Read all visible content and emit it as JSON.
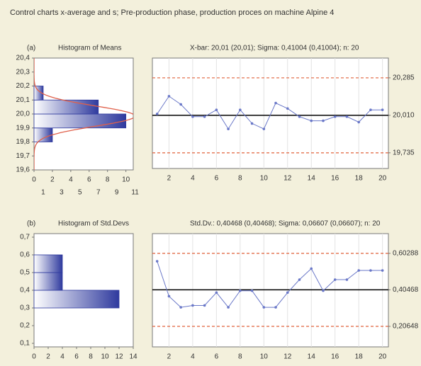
{
  "title": "Control charts x-average and s; Pre-production phase, production proces on machine Alpine 4",
  "chart_data": [
    {
      "type": "histogram",
      "panel": "(a)",
      "title": "Histogram of Means",
      "bins": [
        19.8,
        19.9,
        20.0,
        20.1,
        20.2
      ],
      "values": [
        2,
        10,
        7,
        1
      ],
      "color": "#2f3a9e",
      "ylim": [
        19.6,
        20.4
      ],
      "yticks": [
        {
          "value": 19.6,
          "label": "19,6"
        },
        {
          "value": 19.7,
          "label": "19,7"
        },
        {
          "value": 19.8,
          "label": "19,8"
        },
        {
          "value": 19.9,
          "label": "19,9"
        },
        {
          "value": 20.0,
          "label": "20,0"
        },
        {
          "value": 20.1,
          "label": "20,1"
        },
        {
          "value": 20.2,
          "label": "20,2"
        },
        {
          "value": 20.3,
          "label": "20,3"
        },
        {
          "value": 20.4,
          "label": "20,4"
        }
      ],
      "xlim": [
        0,
        10.8
      ],
      "xticks": [
        0,
        2,
        4,
        6,
        8,
        10
      ],
      "xticks2": [
        1,
        3,
        5,
        7,
        9,
        11
      ],
      "normal_curve": true,
      "curve_color": "#e0604a"
    },
    {
      "type": "line",
      "title": "X-bar: 20,01 (20,01); Sigma: 0,41004 (0,41004); n: 20",
      "x": [
        1,
        2,
        3,
        4,
        5,
        6,
        7,
        8,
        9,
        10,
        11,
        12,
        13,
        14,
        15,
        16,
        17,
        18,
        19,
        20
      ],
      "values": [
        20.02,
        20.15,
        20.09,
        20.0,
        20.0,
        20.05,
        19.91,
        20.05,
        19.95,
        19.91,
        20.1,
        20.06,
        20.0,
        19.97,
        19.97,
        20.0,
        20.0,
        19.96,
        20.05,
        20.05
      ],
      "color": "#6a78c8",
      "xlim": [
        0.6,
        20.5
      ],
      "xticks": [
        2,
        4,
        6,
        8,
        10,
        12,
        14,
        16,
        18,
        20
      ],
      "ylim": [
        19.62,
        20.43
      ],
      "yticks": [
        {
          "value": 19.735,
          "label": "19,735"
        },
        {
          "value": 20.01,
          "label": "20,010"
        },
        {
          "value": 20.285,
          "label": "20,285"
        }
      ],
      "center_color": "#000000",
      "limit_color": "#e0603a",
      "grid": true
    },
    {
      "type": "histogram",
      "panel": "(b)",
      "title": "Histogram of Std.Devs",
      "bins": [
        0.3,
        0.4,
        0.5,
        0.6
      ],
      "values": [
        12,
        4,
        4
      ],
      "color": "#2f3a9e",
      "ylim": [
        0.08,
        0.72
      ],
      "yticks": [
        {
          "value": 0.1,
          "label": "0,1"
        },
        {
          "value": 0.2,
          "label": "0,2"
        },
        {
          "value": 0.3,
          "label": "0,3"
        },
        {
          "value": 0.4,
          "label": "0,4"
        },
        {
          "value": 0.5,
          "label": "0,5"
        },
        {
          "value": 0.6,
          "label": "0,6"
        },
        {
          "value": 0.7,
          "label": "0,7"
        }
      ],
      "xlim": [
        0,
        14
      ],
      "xticks": [
        0,
        2,
        4,
        6,
        8,
        10,
        12,
        14
      ]
    },
    {
      "type": "line",
      "title": "Std.Dv.: 0,40468 (0,40468); Sigma: 0,06607 (0,06607); n: 20",
      "x": [
        1,
        2,
        3,
        4,
        5,
        6,
        7,
        8,
        9,
        10,
        11,
        12,
        13,
        14,
        15,
        16,
        17,
        18,
        19,
        20
      ],
      "values": [
        0.56,
        0.37,
        0.31,
        0.32,
        0.32,
        0.39,
        0.31,
        0.4,
        0.4,
        0.31,
        0.31,
        0.39,
        0.46,
        0.52,
        0.4,
        0.46,
        0.46,
        0.51,
        0.51,
        0.51
      ],
      "color": "#6a78c8",
      "xlim": [
        0.6,
        20.5
      ],
      "xticks": [
        2,
        4,
        6,
        8,
        10,
        12,
        14,
        16,
        18,
        20
      ],
      "ylim": [
        0.095,
        0.71
      ],
      "yticks": [
        {
          "value": 0.20648,
          "label": "0,20648"
        },
        {
          "value": 0.40468,
          "label": "0,40468"
        },
        {
          "value": 0.60288,
          "label": "0,60288"
        }
      ],
      "center_color": "#000000",
      "limit_color": "#e0603a",
      "grid": true
    }
  ]
}
